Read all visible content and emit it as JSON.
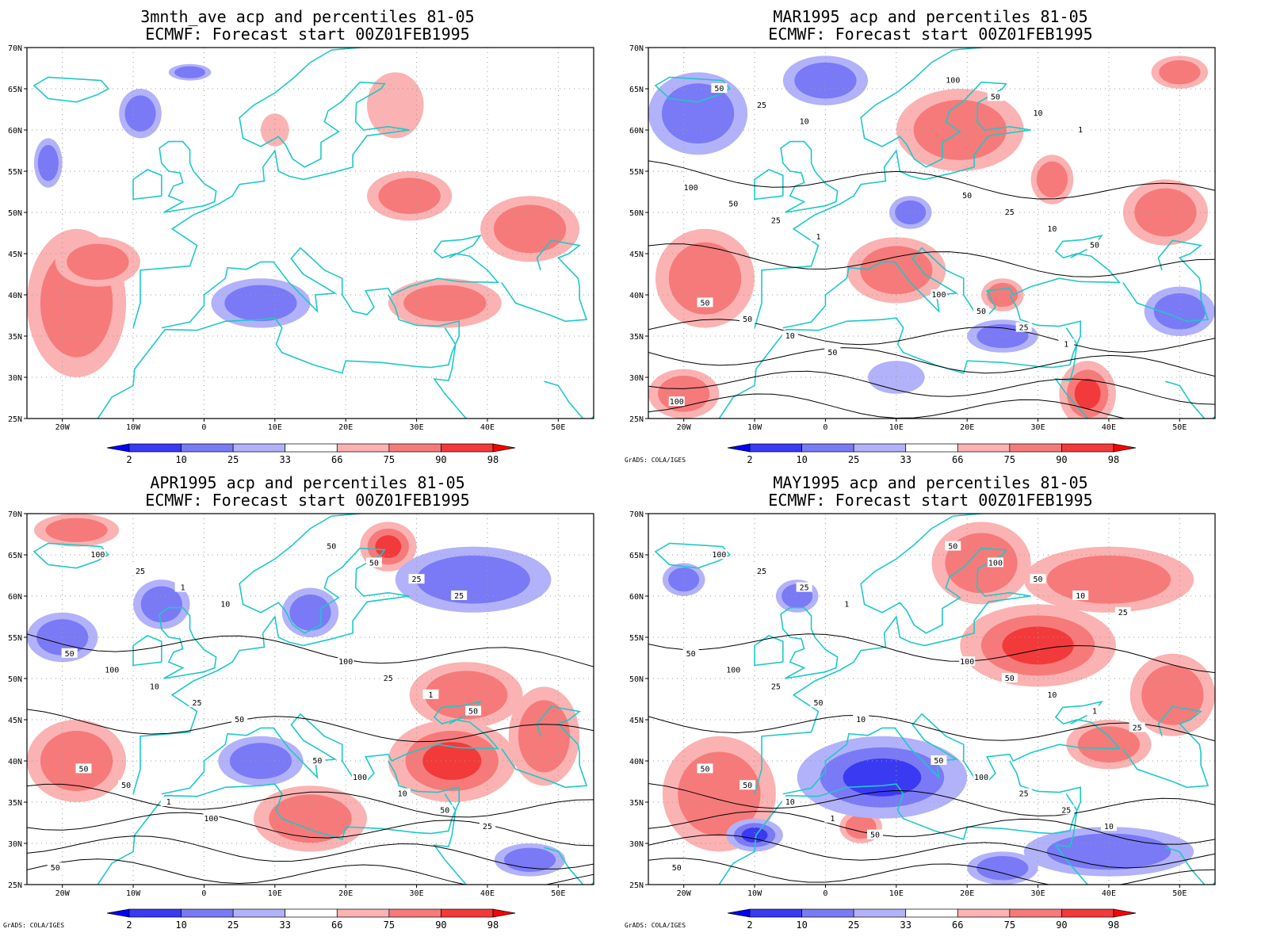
{
  "panels": [
    {
      "id": "p1",
      "title_line1": "3mnth_ave acp and percentiles 81-05",
      "title_line2": "ECMWF: Forecast start 00Z01FEB1995",
      "credit": "",
      "contour_labels": [],
      "pos_blobs": [
        {
          "lon": -18,
          "lat": 39,
          "pct": 80,
          "rx": 7,
          "ry": 9
        },
        {
          "lon": -15,
          "lat": 44,
          "pct": 75,
          "rx": 6,
          "ry": 3
        },
        {
          "lon": 29,
          "lat": 52,
          "pct": 80,
          "rx": 6,
          "ry": 3
        },
        {
          "lon": 46,
          "lat": 48,
          "pct": 88,
          "rx": 7,
          "ry": 4
        },
        {
          "lon": 34,
          "lat": 39,
          "pct": 78,
          "rx": 8,
          "ry": 3
        },
        {
          "lon": 27,
          "lat": 63,
          "pct": 70,
          "rx": 4,
          "ry": 4
        },
        {
          "lon": 10,
          "lat": 60,
          "pct": 70,
          "rx": 2,
          "ry": 2
        }
      ],
      "neg_blobs": [
        {
          "lon": 8,
          "lat": 39,
          "pct": 20,
          "rx": 7,
          "ry": 3
        },
        {
          "lon": -9,
          "lat": 62,
          "pct": 20,
          "rx": 3,
          "ry": 3
        },
        {
          "lon": -22,
          "lat": 56,
          "pct": 22,
          "rx": 2,
          "ry": 3
        },
        {
          "lon": -2,
          "lat": 67,
          "pct": 25,
          "rx": 3,
          "ry": 1
        }
      ]
    },
    {
      "id": "p2",
      "title_line1": "MAR1995 acp and percentiles 81-05",
      "title_line2": "ECMWF: Forecast start 00Z01FEB1995",
      "credit": "GrADS: COLA/IGES",
      "contour_labels": [
        "100",
        "100",
        "100",
        "100",
        "50",
        "50",
        "50",
        "50",
        "50",
        "50",
        "50",
        "25",
        "25",
        "25",
        "25",
        "10",
        "10",
        "10",
        "10",
        "1",
        "1",
        "1",
        "50",
        "50"
      ],
      "pos_blobs": [
        {
          "lon": -17,
          "lat": 42,
          "pct": 82,
          "rx": 7,
          "ry": 6
        },
        {
          "lon": 19,
          "lat": 60,
          "pct": 85,
          "rx": 9,
          "ry": 5
        },
        {
          "lon": 10,
          "lat": 43,
          "pct": 88,
          "rx": 7,
          "ry": 4
        },
        {
          "lon": 37,
          "lat": 28,
          "pct": 92,
          "rx": 4,
          "ry": 4
        },
        {
          "lon": 48,
          "lat": 50,
          "pct": 85,
          "rx": 6,
          "ry": 4
        },
        {
          "lon": 32,
          "lat": 54,
          "pct": 80,
          "rx": 3,
          "ry": 3
        },
        {
          "lon": -20,
          "lat": 28,
          "pct": 85,
          "rx": 5,
          "ry": 3
        },
        {
          "lon": 50,
          "lat": 67,
          "pct": 80,
          "rx": 4,
          "ry": 2
        },
        {
          "lon": 25,
          "lat": 40,
          "pct": 75,
          "rx": 3,
          "ry": 2
        }
      ],
      "neg_blobs": [
        {
          "lon": -18,
          "lat": 62,
          "pct": 20,
          "rx": 7,
          "ry": 5
        },
        {
          "lon": 0,
          "lat": 66,
          "pct": 15,
          "rx": 6,
          "ry": 3
        },
        {
          "lon": 12,
          "lat": 50,
          "pct": 22,
          "rx": 3,
          "ry": 2
        },
        {
          "lon": 50,
          "lat": 38,
          "pct": 25,
          "rx": 5,
          "ry": 3
        },
        {
          "lon": 25,
          "lat": 35,
          "pct": 25,
          "rx": 5,
          "ry": 2
        },
        {
          "lon": 10,
          "lat": 30,
          "pct": 28,
          "rx": 4,
          "ry": 2
        }
      ]
    },
    {
      "id": "p3",
      "title_line1": "APR1995 acp and percentiles 81-05",
      "title_line2": "ECMWF: Forecast start 00Z01FEB1995",
      "credit": "GrADS: COLA/IGES",
      "contour_labels": [
        "50",
        "50",
        "50",
        "50",
        "50",
        "100",
        "100",
        "100",
        "100",
        "50",
        "50",
        "25",
        "25",
        "10",
        "10",
        "25",
        "1",
        "1",
        "1",
        "50",
        "25",
        "25",
        "100",
        "50",
        "10",
        "25",
        "50"
      ],
      "pos_blobs": [
        {
          "lon": -18,
          "lat": 68,
          "pct": 88,
          "rx": 6,
          "ry": 2
        },
        {
          "lon": 26,
          "lat": 66,
          "pct": 92,
          "rx": 4,
          "ry": 3
        },
        {
          "lon": 35,
          "lat": 40,
          "pct": 95,
          "rx": 9,
          "ry": 5
        },
        {
          "lon": 37,
          "lat": 48,
          "pct": 85,
          "rx": 8,
          "ry": 4
        },
        {
          "lon": -18,
          "lat": 40,
          "pct": 85,
          "rx": 7,
          "ry": 5
        },
        {
          "lon": 15,
          "lat": 33,
          "pct": 78,
          "rx": 8,
          "ry": 4
        },
        {
          "lon": 48,
          "lat": 43,
          "pct": 80,
          "rx": 5,
          "ry": 6
        }
      ],
      "neg_blobs": [
        {
          "lon": 38,
          "lat": 62,
          "pct": 18,
          "rx": 11,
          "ry": 4
        },
        {
          "lon": -20,
          "lat": 55,
          "pct": 15,
          "rx": 5,
          "ry": 3
        },
        {
          "lon": 8,
          "lat": 40,
          "pct": 20,
          "rx": 6,
          "ry": 3
        },
        {
          "lon": -6,
          "lat": 59,
          "pct": 25,
          "rx": 4,
          "ry": 3
        },
        {
          "lon": 15,
          "lat": 58,
          "pct": 22,
          "rx": 4,
          "ry": 3
        },
        {
          "lon": 46,
          "lat": 28,
          "pct": 22,
          "rx": 5,
          "ry": 2
        }
      ]
    },
    {
      "id": "p4",
      "title_line1": "MAY1995 acp and percentiles 81-05",
      "title_line2": "ECMWF: Forecast start 00Z01FEB1995",
      "credit": "GrADS: COLA/IGES",
      "contour_labels": [
        "50",
        "50",
        "50",
        "50",
        "50",
        "100",
        "100",
        "100",
        "100",
        "100",
        "50",
        "50",
        "25",
        "25",
        "25",
        "50",
        "10",
        "10",
        "25",
        "25",
        "50",
        "10",
        "1",
        "1",
        "1",
        "10",
        "10",
        "25",
        "50",
        "25"
      ],
      "pos_blobs": [
        {
          "lon": 22,
          "lat": 64,
          "pct": 85,
          "rx": 7,
          "ry": 5
        },
        {
          "lon": 30,
          "lat": 54,
          "pct": 92,
          "rx": 11,
          "ry": 5
        },
        {
          "lon": 49,
          "lat": 48,
          "pct": 85,
          "rx": 6,
          "ry": 5
        },
        {
          "lon": 40,
          "lat": 62,
          "pct": 80,
          "rx": 12,
          "ry": 4
        },
        {
          "lon": -15,
          "lat": 36,
          "pct": 80,
          "rx": 8,
          "ry": 7
        },
        {
          "lon": 40,
          "lat": 42,
          "pct": 78,
          "rx": 6,
          "ry": 3
        },
        {
          "lon": 5,
          "lat": 32,
          "pct": 88,
          "rx": 3,
          "ry": 2
        }
      ],
      "neg_blobs": [
        {
          "lon": 8,
          "lat": 38,
          "pct": 5,
          "rx": 12,
          "ry": 5
        },
        {
          "lon": 40,
          "lat": 29,
          "pct": 15,
          "rx": 12,
          "ry": 3
        },
        {
          "lon": -10,
          "lat": 31,
          "pct": 10,
          "rx": 4,
          "ry": 2
        },
        {
          "lon": 25,
          "lat": 27,
          "pct": 15,
          "rx": 5,
          "ry": 2
        },
        {
          "lon": -4,
          "lat": 60,
          "pct": 25,
          "rx": 3,
          "ry": 2
        },
        {
          "lon": -20,
          "lat": 62,
          "pct": 25,
          "rx": 3,
          "ry": 2
        }
      ]
    }
  ],
  "lat_ticks": [
    "70N",
    "65N",
    "60N",
    "55N",
    "50N",
    "45N",
    "40N",
    "35N",
    "30N",
    "25N"
  ],
  "lon_ticks": [
    "20W",
    "10W",
    "0",
    "10E",
    "20E",
    "30E",
    "40E",
    "50E"
  ],
  "colorbar_labels": [
    "2",
    "10",
    "25",
    "33",
    "66",
    "75",
    "90",
    "98"
  ],
  "colorbar_colors": [
    "#0000ff",
    "#3a3af2",
    "#7a7af6",
    "#b2b2fa",
    "#ffffff",
    "#fbb2b2",
    "#f67a7a",
    "#f23a3a",
    "#ff0000"
  ],
  "colors": {
    "coast": "#1ec8c8",
    "grid": "#9a9a9a",
    "contour": "#000000"
  },
  "domain": {
    "lon_min": -25,
    "lon_max": 55,
    "lat_min": 25,
    "lat_max": 70
  }
}
